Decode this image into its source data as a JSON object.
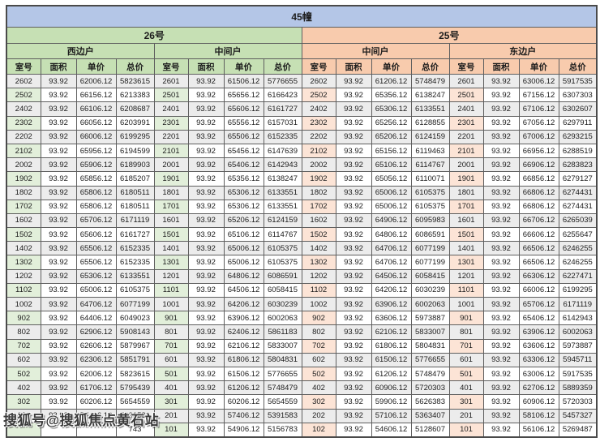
{
  "title": "45幢",
  "watermark": "搜狐号@搜狐焦点黄石站",
  "header": {
    "buildings": [
      {
        "label": "26号"
      },
      {
        "label": "25号"
      }
    ],
    "units": [
      {
        "label": "西边户"
      },
      {
        "label": "中间户"
      },
      {
        "label": "中间户"
      },
      {
        "label": "东边户"
      }
    ],
    "columns": [
      "室号",
      "面积",
      "单价",
      "总价"
    ]
  },
  "colors": {
    "title_bg": "#b4c6e7",
    "building26_bg": "#c6e0b4",
    "building25_bg": "#f8cbad",
    "room_col_26_bg": "#e2efda",
    "room_col_25_bg": "#fce4d6",
    "alt_row_bg": "#ececec",
    "border": "#5f5f5f"
  },
  "groups": [
    {
      "building": "26号",
      "unit": "西边户",
      "rows": [
        [
          "2602",
          "93.92",
          "62006.12",
          "5823615"
        ],
        [
          "2502",
          "93.92",
          "66156.12",
          "6213383"
        ],
        [
          "2402",
          "93.92",
          "66106.12",
          "6208687"
        ],
        [
          "2302",
          "93.92",
          "66056.12",
          "6203991"
        ],
        [
          "2202",
          "93.92",
          "66006.12",
          "6199295"
        ],
        [
          "2102",
          "93.92",
          "65956.12",
          "6194599"
        ],
        [
          "2002",
          "93.92",
          "65906.12",
          "6189903"
        ],
        [
          "1902",
          "93.92",
          "65856.12",
          "6185207"
        ],
        [
          "1802",
          "93.92",
          "65806.12",
          "6180511"
        ],
        [
          "1702",
          "93.92",
          "65806.12",
          "6180511"
        ],
        [
          "1602",
          "93.92",
          "65706.12",
          "6171119"
        ],
        [
          "1502",
          "93.92",
          "65606.12",
          "6161727"
        ],
        [
          "1402",
          "93.92",
          "65506.12",
          "6152335"
        ],
        [
          "1302",
          "93.92",
          "65506.12",
          "6152335"
        ],
        [
          "1202",
          "93.92",
          "65306.12",
          "6133551"
        ],
        [
          "1102",
          "93.92",
          "65006.12",
          "6105375"
        ],
        [
          "1002",
          "93.92",
          "64706.12",
          "6077199"
        ],
        [
          "902",
          "93.92",
          "64406.12",
          "6049023"
        ],
        [
          "802",
          "93.92",
          "62906.12",
          "5908143"
        ],
        [
          "702",
          "93.92",
          "62606.12",
          "5879967"
        ],
        [
          "602",
          "93.92",
          "62306.12",
          "5851791"
        ],
        [
          "502",
          "93.92",
          "62006.12",
          "5823615"
        ],
        [
          "402",
          "93.92",
          "61706.12",
          "5795439"
        ],
        [
          "302",
          "93.92",
          "60206.12",
          "5654559"
        ],
        [
          "202",
          "93.92",
          "57406.12",
          "5391583"
        ],
        [
          "",
          "",
          "",
          "743"
        ]
      ]
    },
    {
      "building": "26号",
      "unit": "中间户",
      "rows": [
        [
          "2601",
          "93.92",
          "61506.12",
          "5776655"
        ],
        [
          "2501",
          "93.92",
          "65656.12",
          "6166423"
        ],
        [
          "2401",
          "93.92",
          "65606.12",
          "6161727"
        ],
        [
          "2301",
          "93.92",
          "65556.12",
          "6157031"
        ],
        [
          "2201",
          "93.92",
          "65506.12",
          "6152335"
        ],
        [
          "2101",
          "93.92",
          "65456.12",
          "6147639"
        ],
        [
          "2001",
          "93.92",
          "65406.12",
          "6142943"
        ],
        [
          "1901",
          "93.92",
          "65356.12",
          "6138247"
        ],
        [
          "1801",
          "93.92",
          "65306.12",
          "6133551"
        ],
        [
          "1701",
          "93.92",
          "65306.12",
          "6133551"
        ],
        [
          "1601",
          "93.92",
          "65206.12",
          "6124159"
        ],
        [
          "1501",
          "93.92",
          "65106.12",
          "6114767"
        ],
        [
          "1401",
          "93.92",
          "65006.12",
          "6105375"
        ],
        [
          "1301",
          "93.92",
          "65006.12",
          "6105375"
        ],
        [
          "1201",
          "93.92",
          "64806.12",
          "6086591"
        ],
        [
          "1101",
          "93.92",
          "64506.12",
          "6058415"
        ],
        [
          "1001",
          "93.92",
          "64206.12",
          "6030239"
        ],
        [
          "901",
          "93.92",
          "63906.12",
          "6002063"
        ],
        [
          "801",
          "93.92",
          "62406.12",
          "5861183"
        ],
        [
          "701",
          "93.92",
          "62106.12",
          "5833007"
        ],
        [
          "601",
          "93.92",
          "61806.12",
          "5804831"
        ],
        [
          "501",
          "93.92",
          "61506.12",
          "5776655"
        ],
        [
          "401",
          "93.92",
          "61206.12",
          "5748479"
        ],
        [
          "301",
          "93.92",
          "60206.12",
          "5654559"
        ],
        [
          "201",
          "93.92",
          "57406.12",
          "5391583"
        ],
        [
          "101",
          "93.92",
          "54906.12",
          "5156783"
        ]
      ]
    },
    {
      "building": "25号",
      "unit": "中间户",
      "rows": [
        [
          "2602",
          "93.92",
          "61206.12",
          "5748479"
        ],
        [
          "2502",
          "93.92",
          "65356.12",
          "6138247"
        ],
        [
          "2402",
          "93.92",
          "65306.12",
          "6133551"
        ],
        [
          "2302",
          "93.92",
          "65256.12",
          "6128855"
        ],
        [
          "2202",
          "93.92",
          "65206.12",
          "6124159"
        ],
        [
          "2102",
          "93.92",
          "65156.12",
          "6119463"
        ],
        [
          "2002",
          "93.92",
          "65106.12",
          "6114767"
        ],
        [
          "1902",
          "93.92",
          "65056.12",
          "6110071"
        ],
        [
          "1802",
          "93.92",
          "65006.12",
          "6105375"
        ],
        [
          "1702",
          "93.92",
          "65006.12",
          "6105375"
        ],
        [
          "1602",
          "93.92",
          "64906.12",
          "6095983"
        ],
        [
          "1502",
          "93.92",
          "64806.12",
          "6086591"
        ],
        [
          "1402",
          "93.92",
          "64706.12",
          "6077199"
        ],
        [
          "1302",
          "93.92",
          "64706.12",
          "6077199"
        ],
        [
          "1202",
          "93.92",
          "64506.12",
          "6058415"
        ],
        [
          "1102",
          "93.92",
          "64206.12",
          "6030239"
        ],
        [
          "1002",
          "93.92",
          "63906.12",
          "6002063"
        ],
        [
          "902",
          "93.92",
          "63606.12",
          "5973887"
        ],
        [
          "802",
          "93.92",
          "62106.12",
          "5833007"
        ],
        [
          "702",
          "93.92",
          "61806.12",
          "5804831"
        ],
        [
          "602",
          "93.92",
          "61506.12",
          "5776655"
        ],
        [
          "502",
          "93.92",
          "61206.12",
          "5748479"
        ],
        [
          "402",
          "93.92",
          "60906.12",
          "5720303"
        ],
        [
          "302",
          "93.92",
          "59906.12",
          "5626383"
        ],
        [
          "202",
          "93.92",
          "57106.12",
          "5363407"
        ],
        [
          "102",
          "93.92",
          "54606.12",
          "5128607"
        ]
      ]
    },
    {
      "building": "25号",
      "unit": "东边户",
      "rows": [
        [
          "2601",
          "93.92",
          "63006.12",
          "5917535"
        ],
        [
          "2501",
          "93.92",
          "67156.12",
          "6307303"
        ],
        [
          "2401",
          "93.92",
          "67106.12",
          "6302607"
        ],
        [
          "2301",
          "93.92",
          "67056.12",
          "6297911"
        ],
        [
          "2201",
          "93.92",
          "67006.12",
          "6293215"
        ],
        [
          "2101",
          "93.92",
          "66956.12",
          "6288519"
        ],
        [
          "2001",
          "93.92",
          "66906.12",
          "6283823"
        ],
        [
          "1901",
          "93.92",
          "66856.12",
          "6279127"
        ],
        [
          "1801",
          "93.92",
          "66806.12",
          "6274431"
        ],
        [
          "1701",
          "93.92",
          "66806.12",
          "6274431"
        ],
        [
          "1601",
          "93.92",
          "66706.12",
          "6265039"
        ],
        [
          "1501",
          "93.92",
          "66606.12",
          "6255647"
        ],
        [
          "1401",
          "93.92",
          "66506.12",
          "6246255"
        ],
        [
          "1301",
          "93.92",
          "66506.12",
          "6246255"
        ],
        [
          "1201",
          "93.92",
          "66306.12",
          "6227471"
        ],
        [
          "1101",
          "93.92",
          "66006.12",
          "6199295"
        ],
        [
          "1001",
          "93.92",
          "65706.12",
          "6171119"
        ],
        [
          "901",
          "93.92",
          "65406.12",
          "6142943"
        ],
        [
          "801",
          "93.92",
          "63906.12",
          "6002063"
        ],
        [
          "701",
          "93.92",
          "63606.12",
          "5973887"
        ],
        [
          "601",
          "93.92",
          "63306.12",
          "5945711"
        ],
        [
          "501",
          "93.92",
          "63006.12",
          "5917535"
        ],
        [
          "401",
          "93.92",
          "62706.12",
          "5889359"
        ],
        [
          "301",
          "93.92",
          "60906.12",
          "5720303"
        ],
        [
          "201",
          "93.92",
          "58106.12",
          "5457327"
        ],
        [
          "101",
          "93.92",
          "56106.12",
          "5269487"
        ]
      ]
    }
  ]
}
